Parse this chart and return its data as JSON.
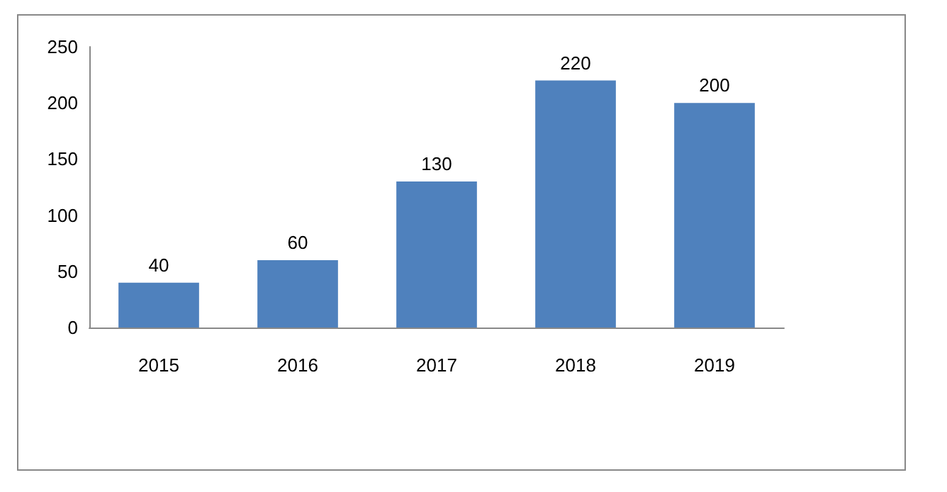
{
  "chart_data": {
    "type": "bar",
    "categories": [
      "2015",
      "2016",
      "2017",
      "2018",
      "2019"
    ],
    "values": [
      40,
      60,
      130,
      220,
      200
    ],
    "color": "#4f81bd",
    "ylim": [
      0,
      250
    ],
    "yticks": [
      0,
      50,
      100,
      150,
      200,
      250
    ],
    "grid": false,
    "data_labels": true
  }
}
